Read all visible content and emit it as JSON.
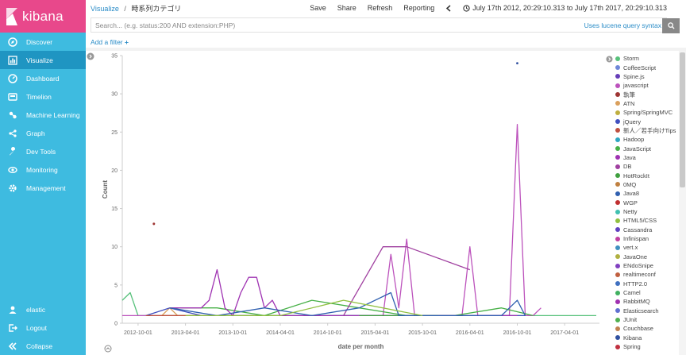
{
  "app": {
    "logo": "kibana"
  },
  "sidebar": {
    "items": [
      {
        "label": "Discover",
        "icon": "compass-icon",
        "active": false
      },
      {
        "label": "Visualize",
        "icon": "bar-chart-icon",
        "active": true
      },
      {
        "label": "Dashboard",
        "icon": "dashboard-icon",
        "active": false
      },
      {
        "label": "Timelion",
        "icon": "timelion-icon",
        "active": false
      },
      {
        "label": "Machine Learning",
        "icon": "machine-learning-icon",
        "active": false
      },
      {
        "label": "Graph",
        "icon": "graph-icon",
        "active": false
      },
      {
        "label": "Dev Tools",
        "icon": "wrench-icon",
        "active": false
      },
      {
        "label": "Monitoring",
        "icon": "eye-icon",
        "active": false
      },
      {
        "label": "Management",
        "icon": "gear-icon",
        "active": false
      }
    ],
    "bottom": [
      {
        "label": "elastic",
        "icon": "user-icon"
      },
      {
        "label": "Logout",
        "icon": "logout-icon"
      },
      {
        "label": "Collapse",
        "icon": "collapse-icon"
      }
    ]
  },
  "topbar": {
    "breadcrumb_link": "Visualize",
    "breadcrumb_sep": "/",
    "breadcrumb_current": "時系列カテゴリ",
    "save": "Save",
    "share": "Share",
    "refresh": "Refresh",
    "reporting": "Reporting",
    "time_range": "July 17th 2012, 20:29:10.313 to July 17th 2017, 20:29:10.313"
  },
  "search": {
    "placeholder": "Search... (e.g. status:200 AND extension:PHP)",
    "value": "",
    "syntax_link": "Uses lucene query syntax"
  },
  "filter": {
    "add_label": "Add a filter"
  },
  "colors": {
    "brand": "#e8488b",
    "sidebar": "#3ebbe0",
    "sidebar_active": "#1f95c2",
    "link": "#2a8cc7"
  },
  "chart_data": {
    "type": "line",
    "xlabel": "date per month",
    "ylabel": "Count",
    "ylim": [
      0,
      35
    ],
    "yticks": [
      0,
      5,
      10,
      15,
      20,
      25,
      30,
      35
    ],
    "xticks": [
      "2012-10-01",
      "2013-04-01",
      "2013-10-01",
      "2014-04-01",
      "2014-10-01",
      "2015-04-01",
      "2015-10-01",
      "2016-04-01",
      "2016-10-01",
      "2017-04-01"
    ],
    "x_domain_months": [
      0,
      60
    ],
    "grid": false,
    "legend_position": "right",
    "series": [
      {
        "name": "Storm",
        "color": "#57c17b",
        "points": [
          [
            0,
            3
          ],
          [
            1,
            4
          ],
          [
            2,
            1
          ],
          [
            5,
            1
          ],
          [
            10,
            1
          ],
          [
            20,
            1
          ],
          [
            30,
            1
          ],
          [
            40,
            1
          ],
          [
            50,
            1
          ],
          [
            60,
            1
          ]
        ]
      },
      {
        "name": "CoffeeScript",
        "color": "#6f87d8",
        "points": []
      },
      {
        "name": "Spine.js",
        "color": "#663db8",
        "points": []
      },
      {
        "name": "javascript",
        "color": "#bc52bc",
        "points": [
          [
            0,
            1
          ],
          [
            5,
            1
          ],
          [
            9,
            1
          ],
          [
            12,
            1
          ],
          [
            15,
            1
          ],
          [
            20,
            1
          ],
          [
            25,
            1
          ],
          [
            30,
            1
          ],
          [
            33,
            1
          ],
          [
            34,
            9
          ],
          [
            35,
            2
          ],
          [
            36,
            11
          ],
          [
            37,
            1
          ],
          [
            40,
            1
          ],
          [
            43,
            1
          ],
          [
            44,
            10
          ],
          [
            45,
            1
          ],
          [
            46,
            1
          ],
          [
            47,
            1
          ],
          [
            48,
            1
          ],
          [
            49,
            1
          ],
          [
            50,
            26
          ],
          [
            51,
            1
          ],
          [
            52,
            1
          ],
          [
            53,
            2
          ]
        ]
      },
      {
        "name": "執筆",
        "color": "#9e3533",
        "points": [
          [
            4,
            13
          ]
        ]
      },
      {
        "name": "ATN",
        "color": "#daa05d",
        "points": [
          [
            5,
            1
          ],
          [
            6,
            2
          ],
          [
            7,
            1
          ],
          [
            10,
            1
          ],
          [
            20,
            1
          ],
          [
            30,
            1
          ]
        ]
      },
      {
        "name": "Spring/SpringMVC",
        "color": "#bfaf40",
        "points": [
          [
            5,
            1
          ],
          [
            15,
            1
          ],
          [
            25,
            1
          ]
        ]
      },
      {
        "name": "jQuery",
        "color": "#4050bf",
        "points": [
          [
            3,
            1
          ],
          [
            6,
            2
          ],
          [
            10,
            1
          ],
          [
            14,
            1
          ],
          [
            18,
            1
          ],
          [
            24,
            1
          ],
          [
            32,
            1
          ],
          [
            40,
            1
          ],
          [
            49,
            1
          ],
          [
            51,
            1
          ]
        ]
      },
      {
        "name": "新人／若手向けTips",
        "color": "#bf5040",
        "points": [
          [
            3,
            1
          ],
          [
            10,
            1
          ]
        ]
      },
      {
        "name": "Hadoop",
        "color": "#2ea6c2",
        "points": [
          [
            20,
            1
          ],
          [
            30,
            1
          ]
        ]
      },
      {
        "name": "JavaScript",
        "color": "#46b046",
        "points": [
          [
            6,
            2
          ],
          [
            12,
            2
          ],
          [
            18,
            1
          ],
          [
            24,
            3
          ],
          [
            30,
            2
          ],
          [
            36,
            1
          ],
          [
            42,
            1
          ],
          [
            48,
            2
          ],
          [
            52,
            1
          ]
        ]
      },
      {
        "name": "Java",
        "color": "#9f33b2",
        "points": [
          [
            6,
            2
          ],
          [
            10,
            2
          ],
          [
            11,
            3
          ],
          [
            12,
            7
          ],
          [
            13,
            2
          ],
          [
            14,
            1
          ],
          [
            15,
            4
          ],
          [
            16,
            6
          ],
          [
            17,
            6
          ],
          [
            18,
            2
          ],
          [
            19,
            3
          ],
          [
            20,
            1
          ],
          [
            25,
            1
          ],
          [
            30,
            1
          ],
          [
            35,
            1
          ],
          [
            40,
            1
          ],
          [
            45,
            1
          ],
          [
            50,
            1
          ]
        ]
      },
      {
        "name": "DB",
        "color": "#a040a0",
        "points": [
          [
            28,
            1
          ],
          [
            33,
            10
          ],
          [
            36,
            10
          ],
          [
            44,
            7
          ]
        ]
      },
      {
        "name": "HotRockIt",
        "color": "#40a040",
        "points": [
          [
            30,
            1
          ],
          [
            40,
            1
          ]
        ]
      },
      {
        "name": "0MQ",
        "color": "#c08040",
        "points": []
      },
      {
        "name": "Java8",
        "color": "#3060b0",
        "points": [
          [
            6,
            2
          ],
          [
            12,
            1
          ],
          [
            18,
            2
          ],
          [
            24,
            1
          ],
          [
            30,
            2
          ],
          [
            34,
            4
          ],
          [
            35,
            1
          ],
          [
            42,
            1
          ],
          [
            48,
            1
          ],
          [
            50,
            3
          ],
          [
            51,
            1
          ]
        ]
      },
      {
        "name": "WGP",
        "color": "#c03030",
        "points": []
      },
      {
        "name": "Netty",
        "color": "#40c0b0",
        "points": []
      },
      {
        "name": "HTML5/CSS",
        "color": "#90c040",
        "points": [
          [
            8,
            1
          ],
          [
            12,
            1
          ],
          [
            20,
            1
          ],
          [
            28,
            3
          ],
          [
            38,
            1
          ]
        ]
      },
      {
        "name": "Cassandra",
        "color": "#6040c0",
        "points": []
      },
      {
        "name": "Infinispan",
        "color": "#c040a0",
        "points": []
      },
      {
        "name": "vert.x",
        "color": "#4090c0",
        "points": []
      },
      {
        "name": "JavaOne",
        "color": "#b0b040",
        "points": []
      },
      {
        "name": "ENdoSnipe",
        "color": "#8040c0",
        "points": []
      },
      {
        "name": "realtimeconf",
        "color": "#c06040",
        "points": []
      },
      {
        "name": "HTTP2.0",
        "color": "#4070c0",
        "points": []
      },
      {
        "name": "Camel",
        "color": "#40b060",
        "points": []
      },
      {
        "name": "RabbitMQ",
        "color": "#a030b0",
        "points": []
      },
      {
        "name": "Elasticsearch",
        "color": "#6070d0",
        "points": []
      },
      {
        "name": "JUnit",
        "color": "#50b050",
        "points": []
      },
      {
        "name": "Couchbase",
        "color": "#c08050",
        "points": []
      },
      {
        "name": "Kibana",
        "color": "#3050a0",
        "points": []
      },
      {
        "name": "Spring",
        "color": "#c03040",
        "points": []
      }
    ],
    "outliers": [
      {
        "x": 4,
        "y": 13,
        "color": "#9e3533"
      },
      {
        "x": 50,
        "y": 34,
        "color": "#3050a0"
      }
    ]
  }
}
